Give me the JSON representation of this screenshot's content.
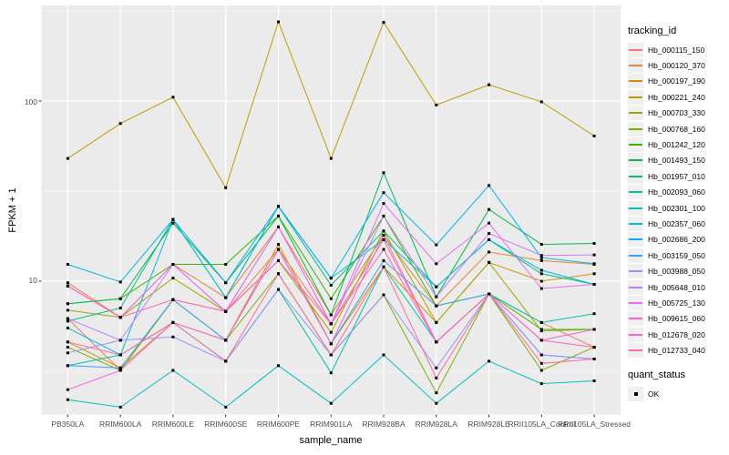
{
  "figure": {
    "background": "#FFFFFF",
    "panel_background": "#EBEBEB",
    "grid_color": "#FFFFFF",
    "tick_color": "#333333"
  },
  "axes": {
    "x_title": "sample_name",
    "y_title": "FPKM + 1",
    "y_tick_labels": [
      "100",
      "10"
    ]
  },
  "legend": {
    "tracking_title": "tracking_id",
    "quant_title": "quant_status",
    "quant_items": [
      {
        "label": "OK",
        "marker": "black-square"
      }
    ]
  },
  "chart_data": {
    "type": "line",
    "title": "",
    "xlabel": "sample_name",
    "ylabel": "FPKM + 1",
    "y_scale": "log10",
    "y_ticks": [
      100,
      10
    ],
    "y_minor_ticks": [
      316.23,
      31.623,
      3.1623
    ],
    "ylim": [
      1.75,
      340
    ],
    "grid": true,
    "legend_position": "right",
    "legend_title": "tracking_id",
    "point_marker": {
      "shape": "square",
      "color": "#000000",
      "size": 3
    },
    "categories": [
      "PB350LA",
      "RRIM600LA",
      "RRIM600LE",
      "RRIM600SE",
      "RRIM600PE",
      "RRIM901LA",
      "RRIM928BA",
      "RRIM928LA",
      "RRIM928LE",
      "RRII105LA_Control",
      "RRII105LA_Stressed"
    ],
    "series": [
      {
        "name": "Hb_000115_150",
        "color": "#F8766D",
        "values": [
          6.2,
          3.2,
          7.9,
          6.8,
          15,
          5.8,
          17,
          4.6,
          8.5,
          5.9,
          4.3
        ]
      },
      {
        "name": "Hb_000120_370",
        "color": "#EA8331",
        "values": [
          9.8,
          6.3,
          12.4,
          8.1,
          20,
          6.5,
          18,
          7.3,
          14.5,
          13,
          12.4
        ]
      },
      {
        "name": "Hb_000197_190",
        "color": "#D89000",
        "values": [
          4.6,
          3.3,
          5.9,
          4.7,
          16,
          4.5,
          12,
          5.9,
          12.7,
          10,
          11
        ]
      },
      {
        "name": "Hb_000221_240",
        "color": "#C09B00",
        "values": [
          48,
          75,
          105,
          33,
          275,
          48,
          273,
          95,
          123,
          99,
          64
        ]
      },
      {
        "name": "Hb_000703_330",
        "color": "#A3A500",
        "values": [
          6.9,
          6.3,
          10.4,
          6.8,
          13,
          5.2,
          19,
          5.9,
          12.7,
          5.3,
          5.4
        ]
      },
      {
        "name": "Hb_000768_160",
        "color": "#7CAE00",
        "values": [
          4.3,
          3.2,
          7.9,
          4.7,
          11,
          3.9,
          8.4,
          2.4,
          8.5,
          3.2,
          4.3
        ]
      },
      {
        "name": "Hb_001242_120",
        "color": "#39B600",
        "values": [
          7.5,
          8.0,
          12.4,
          12.4,
          23,
          8.0,
          23,
          7.3,
          8.5,
          5.4,
          5.4
        ]
      },
      {
        "name": "Hb_001493_150",
        "color": "#00BB4E",
        "values": [
          7.5,
          8.0,
          21,
          9.8,
          23,
          6.5,
          40,
          8.2,
          25,
          16,
          16.2
        ]
      },
      {
        "name": "Hb_001957_010",
        "color": "#00BF7D",
        "values": [
          6.0,
          7.1,
          22,
          8.1,
          26,
          9.5,
          19,
          9.3,
          17,
          11,
          9.6
        ]
      },
      {
        "name": "Hb_002093_060",
        "color": "#00C1A3",
        "values": [
          3.4,
          3.9,
          5.9,
          3.6,
          9,
          3.1,
          12,
          4.6,
          8.5,
          5.9,
          6.6
        ]
      },
      {
        "name": "Hb_002301_100",
        "color": "#00BFC4",
        "values": [
          2.2,
          2.0,
          3.2,
          2.0,
          3.4,
          2.1,
          3.9,
          2.1,
          3.6,
          2.7,
          2.8
        ]
      },
      {
        "name": "Hb_002357_060",
        "color": "#00BAE0",
        "values": [
          5.5,
          3.9,
          22,
          8.1,
          26,
          10.4,
          17,
          9.3,
          17,
          11.5,
          9.6
        ]
      },
      {
        "name": "Hb_002686_200",
        "color": "#00B0F6",
        "values": [
          12.4,
          9.9,
          22,
          9.8,
          26,
          10.4,
          31,
          15.9,
          34,
          13.5,
          12.5
        ]
      },
      {
        "name": "Hb_003159_050",
        "color": "#35A2FF",
        "values": [
          3.4,
          3.3,
          7.9,
          4.7,
          15,
          4.5,
          13,
          7.3,
          8.5,
          3.9,
          3.7
        ]
      },
      {
        "name": "Hb_003988_050",
        "color": "#9590FF",
        "values": [
          4.0,
          4.7,
          4.9,
          3.6,
          9,
          3.9,
          8.4,
          3.3,
          8.5,
          3.9,
          3.7
        ]
      },
      {
        "name": "Hb_005648_010",
        "color": "#C77CFF",
        "values": [
          6.2,
          4.7,
          12.4,
          6.8,
          20,
          5.8,
          23,
          8.2,
          18.4,
          13.9,
          14
        ]
      },
      {
        "name": "Hb_005725_130",
        "color": "#E76BF3",
        "values": [
          9.4,
          6.3,
          12.4,
          6.8,
          20,
          5.8,
          27,
          12.5,
          21,
          9.1,
          9.6
        ]
      },
      {
        "name": "Hb_009615_060",
        "color": "#FA62DB",
        "values": [
          2.5,
          3.2,
          5.9,
          4.7,
          15,
          4.5,
          18,
          4.6,
          8.5,
          4.7,
          5.4
        ]
      },
      {
        "name": "Hb_012678_020",
        "color": "#FF62BC",
        "values": [
          9.4,
          6.3,
          7.9,
          6.8,
          13,
          5.8,
          15,
          4.6,
          8.5,
          4.7,
          4.3
        ]
      },
      {
        "name": "Hb_012733_040",
        "color": "#FF6A98",
        "values": [
          4.6,
          3.9,
          5.9,
          3.6,
          11,
          3.9,
          12,
          2.9,
          8.5,
          3.5,
          3.7
        ]
      }
    ]
  }
}
